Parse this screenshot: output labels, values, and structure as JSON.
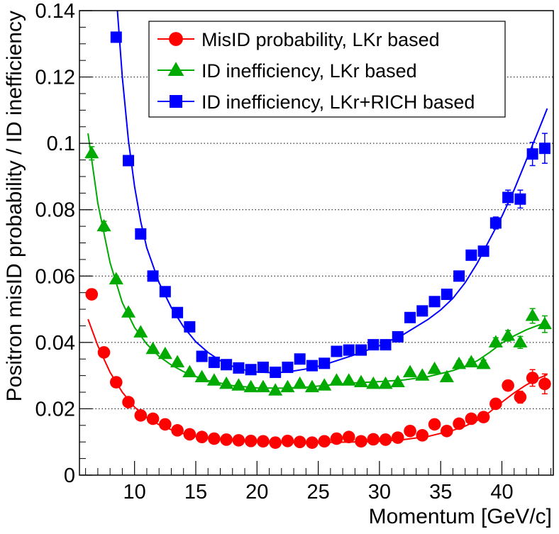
{
  "chart_data": {
    "type": "scatter",
    "xlabel": "Momentum [GeV/c]",
    "ylabel": "Positron misID probability / ID inefficiency",
    "xlim": [
      5.5,
      44.2
    ],
    "ylim": [
      0,
      0.14
    ],
    "x_ticks": [
      10,
      15,
      20,
      25,
      30,
      35,
      40
    ],
    "x_tick_labels": [
      "10",
      "15",
      "20",
      "25",
      "30",
      "35",
      "40"
    ],
    "y_ticks": [
      0,
      0.02,
      0.04,
      0.06,
      0.08,
      0.1,
      0.12,
      0.14
    ],
    "y_tick_labels": [
      "0",
      "0.02",
      "0.04",
      "0.06",
      "0.08",
      "0.1",
      "0.12",
      "0.14"
    ],
    "y_gridlines": [
      0.02,
      0.04,
      0.06,
      0.08,
      0.1,
      0.12
    ],
    "grid": "horizontal dotted",
    "legend_position": "top-right",
    "series": [
      {
        "name": "MisID probability, LKr based",
        "color": "#ff0000",
        "marker": "circle",
        "x": [
          6.5,
          7.5,
          8.5,
          9.5,
          10.5,
          11.5,
          12.5,
          13.5,
          14.5,
          15.5,
          16.5,
          17.5,
          18.5,
          19.5,
          20.5,
          21.5,
          22.5,
          23.5,
          24.5,
          25.5,
          26.5,
          27.5,
          28.5,
          29.5,
          30.5,
          31.5,
          32.5,
          33.5,
          34.5,
          35.5,
          36.5,
          37.5,
          38.5,
          39.5,
          40.5,
          41.5,
          42.5,
          43.5
        ],
        "y": [
          0.0545,
          0.037,
          0.028,
          0.022,
          0.018,
          0.017,
          0.0153,
          0.0135,
          0.0123,
          0.0115,
          0.011,
          0.0107,
          0.0105,
          0.0103,
          0.0102,
          0.0098,
          0.0103,
          0.01,
          0.0098,
          0.0102,
          0.011,
          0.0115,
          0.0102,
          0.0108,
          0.0107,
          0.0113,
          0.0133,
          0.012,
          0.0153,
          0.0133,
          0.0155,
          0.017,
          0.0175,
          0.0215,
          0.027,
          0.0235,
          0.0293,
          0.0275
        ],
        "yerr": [
          0.0015,
          0.001,
          0.0008,
          0.0007,
          0.0006,
          0.0005,
          0.0005,
          0.0004,
          0.0004,
          0.0004,
          0.0004,
          0.0004,
          0.0004,
          0.0004,
          0.0004,
          0.0004,
          0.0004,
          0.0004,
          0.0004,
          0.0004,
          0.0004,
          0.0004,
          0.0004,
          0.0004,
          0.0004,
          0.0004,
          0.0005,
          0.0005,
          0.0005,
          0.0006,
          0.0007,
          0.0008,
          0.0009,
          0.001,
          0.0015,
          0.0018,
          0.0025,
          0.003
        ],
        "fit": {
          "x": [
            6.2,
            7,
            8,
            9,
            10,
            11,
            12,
            13,
            14,
            15,
            16,
            18,
            20,
            22,
            24,
            26,
            28,
            30,
            32,
            34,
            36,
            37,
            38,
            39,
            40,
            41,
            42,
            43,
            43.7
          ],
          "y": [
            0.047,
            0.039,
            0.031,
            0.025,
            0.0205,
            0.0173,
            0.0152,
            0.0137,
            0.0125,
            0.0117,
            0.0112,
            0.0105,
            0.0101,
            0.0099,
            0.0098,
            0.0099,
            0.01,
            0.0102,
            0.0107,
            0.0117,
            0.0135,
            0.0148,
            0.0165,
            0.019,
            0.022,
            0.0248,
            0.0272,
            0.0292,
            0.0303
          ]
        }
      },
      {
        "name": "ID inefficiency, LKr based",
        "color": "#00aa00",
        "marker": "triangle",
        "x": [
          6.5,
          7.5,
          8.5,
          9.5,
          10.5,
          11.5,
          12.5,
          13.5,
          14.5,
          15.5,
          16.5,
          17.5,
          18.5,
          19.5,
          20.5,
          21.5,
          22.5,
          23.5,
          24.5,
          25.5,
          26.5,
          27.5,
          28.5,
          29.5,
          30.5,
          31.5,
          32.5,
          33.5,
          34.5,
          35.5,
          36.5,
          37.5,
          38.5,
          39.5,
          40.5,
          41.5,
          42.5,
          43.5
        ],
        "y": [
          0.097,
          0.075,
          0.059,
          0.049,
          0.043,
          0.038,
          0.0365,
          0.034,
          0.031,
          0.0295,
          0.0285,
          0.0275,
          0.027,
          0.0265,
          0.0265,
          0.0255,
          0.0265,
          0.0275,
          0.0265,
          0.027,
          0.0285,
          0.0285,
          0.028,
          0.0275,
          0.0275,
          0.028,
          0.031,
          0.03,
          0.032,
          0.0295,
          0.0335,
          0.034,
          0.0335,
          0.04,
          0.042,
          0.04,
          0.048,
          0.0455
        ],
        "yerr": [
          0.002,
          0.0015,
          0.001,
          0.0008,
          0.0007,
          0.0006,
          0.0005,
          0.0005,
          0.0005,
          0.0005,
          0.0005,
          0.0005,
          0.0005,
          0.0005,
          0.0005,
          0.0005,
          0.0005,
          0.0005,
          0.0005,
          0.0005,
          0.0005,
          0.0005,
          0.0005,
          0.0005,
          0.0005,
          0.0005,
          0.0006,
          0.0006,
          0.0007,
          0.0008,
          0.0009,
          0.001,
          0.0012,
          0.0014,
          0.0016,
          0.0018,
          0.0022,
          0.0025
        ],
        "fit": {
          "x": [
            6.2,
            7,
            8,
            9,
            10,
            11,
            12,
            13,
            14,
            15,
            16,
            18,
            20,
            22,
            24,
            26,
            28,
            30,
            32,
            34,
            36,
            37,
            38,
            39,
            40,
            41,
            42,
            43,
            43.7
          ],
          "y": [
            0.103,
            0.082,
            0.064,
            0.052,
            0.0445,
            0.0395,
            0.0358,
            0.0332,
            0.0312,
            0.0297,
            0.0285,
            0.027,
            0.0263,
            0.0262,
            0.0265,
            0.0272,
            0.0278,
            0.0282,
            0.0287,
            0.0297,
            0.0315,
            0.0328,
            0.0345,
            0.037,
            0.0398,
            0.042,
            0.0438,
            0.0452,
            0.046
          ]
        }
      },
      {
        "name": "ID inefficiency, LKr+RICH based",
        "color": "#0000ff",
        "marker": "square",
        "x": [
          8.5,
          9.5,
          10.5,
          11.5,
          12.5,
          13.5,
          14.5,
          15.5,
          16.5,
          17.5,
          18.5,
          19.5,
          20.5,
          21.5,
          22.5,
          23.5,
          24.5,
          25.5,
          26.5,
          27.5,
          28.5,
          29.5,
          30.5,
          31.5,
          32.5,
          33.5,
          34.5,
          35.5,
          36.5,
          37.5,
          38.5,
          39.5,
          40.5,
          41.5,
          42.5,
          43.5
        ],
        "y": [
          0.132,
          0.0948,
          0.0727,
          0.06,
          0.0553,
          0.049,
          0.0447,
          0.0358,
          0.034,
          0.0333,
          0.0323,
          0.0318,
          0.0325,
          0.031,
          0.0325,
          0.035,
          0.033,
          0.0337,
          0.0373,
          0.0377,
          0.0377,
          0.0393,
          0.0393,
          0.0417,
          0.0475,
          0.0495,
          0.0523,
          0.0545,
          0.06,
          0.0663,
          0.0675,
          0.076,
          0.0837,
          0.0832,
          0.0968,
          0.0985
        ],
        "yerr": [
          0.0015,
          0.001,
          0.0008,
          0.0007,
          0.0006,
          0.0005,
          0.0005,
          0.0005,
          0.0005,
          0.0005,
          0.0005,
          0.0005,
          0.0005,
          0.0005,
          0.0005,
          0.0005,
          0.0005,
          0.0005,
          0.0005,
          0.0005,
          0.0005,
          0.0005,
          0.0005,
          0.0005,
          0.0006,
          0.0007,
          0.0008,
          0.0009,
          0.001,
          0.0012,
          0.0014,
          0.0018,
          0.0022,
          0.0027,
          0.0035,
          0.0045
        ],
        "fit": {
          "x": [
            8.6,
            9,
            9.5,
            10,
            10.5,
            11,
            12,
            13,
            14,
            15,
            16,
            17,
            18,
            19,
            20,
            21,
            22,
            23,
            24,
            25,
            26,
            28,
            30,
            32,
            34,
            35,
            36,
            37,
            38,
            39,
            40,
            41,
            42,
            43,
            43.7
          ],
          "y": [
            0.14,
            0.12,
            0.101,
            0.087,
            0.0765,
            0.0685,
            0.058,
            0.0505,
            0.0447,
            0.0402,
            0.037,
            0.0345,
            0.0328,
            0.0317,
            0.0311,
            0.0309,
            0.031,
            0.0314,
            0.032,
            0.0328,
            0.0339,
            0.0363,
            0.039,
            0.0425,
            0.047,
            0.0498,
            0.0533,
            0.058,
            0.064,
            0.071,
            0.078,
            0.086,
            0.095,
            0.104,
            0.1105
          ]
        }
      }
    ]
  }
}
